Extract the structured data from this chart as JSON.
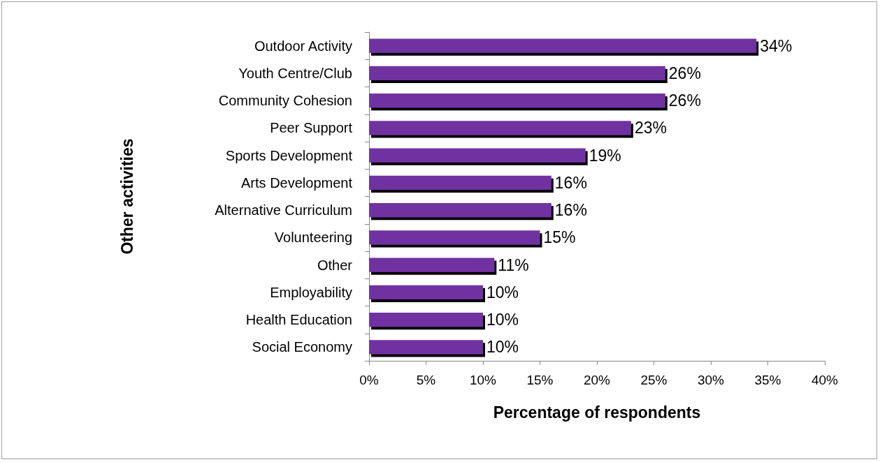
{
  "chart_data": {
    "type": "bar",
    "orientation": "horizontal",
    "xlabel": "Percentage of respondents",
    "ylabel": "Other activities",
    "categories": [
      "Outdoor Activity",
      "Youth Centre/Club",
      "Community Cohesion",
      "Peer Support",
      "Sports Development",
      "Arts Development",
      "Alternative Curriculum",
      "Volunteering",
      "Other",
      "Employability",
      "Health Education",
      "Social Economy"
    ],
    "values": [
      34,
      26,
      26,
      23,
      19,
      16,
      16,
      15,
      11,
      10,
      10,
      10
    ],
    "value_labels": [
      "34%",
      "26%",
      "26%",
      "23%",
      "19%",
      "16%",
      "16%",
      "15%",
      "11%",
      "10%",
      "10%",
      "10%"
    ],
    "color": "#7030a0",
    "xlim": [
      0,
      40
    ],
    "xticks": [
      {
        "value": 0,
        "label": "0%"
      },
      {
        "value": 5,
        "label": "5%"
      },
      {
        "value": 10,
        "label": "10%"
      },
      {
        "value": 15,
        "label": "15%"
      },
      {
        "value": 20,
        "label": "20%"
      },
      {
        "value": 25,
        "label": "25%"
      },
      {
        "value": 30,
        "label": "30%"
      },
      {
        "value": 35,
        "label": "35%"
      },
      {
        "value": 40,
        "label": "40%"
      }
    ],
    "grid": false
  }
}
